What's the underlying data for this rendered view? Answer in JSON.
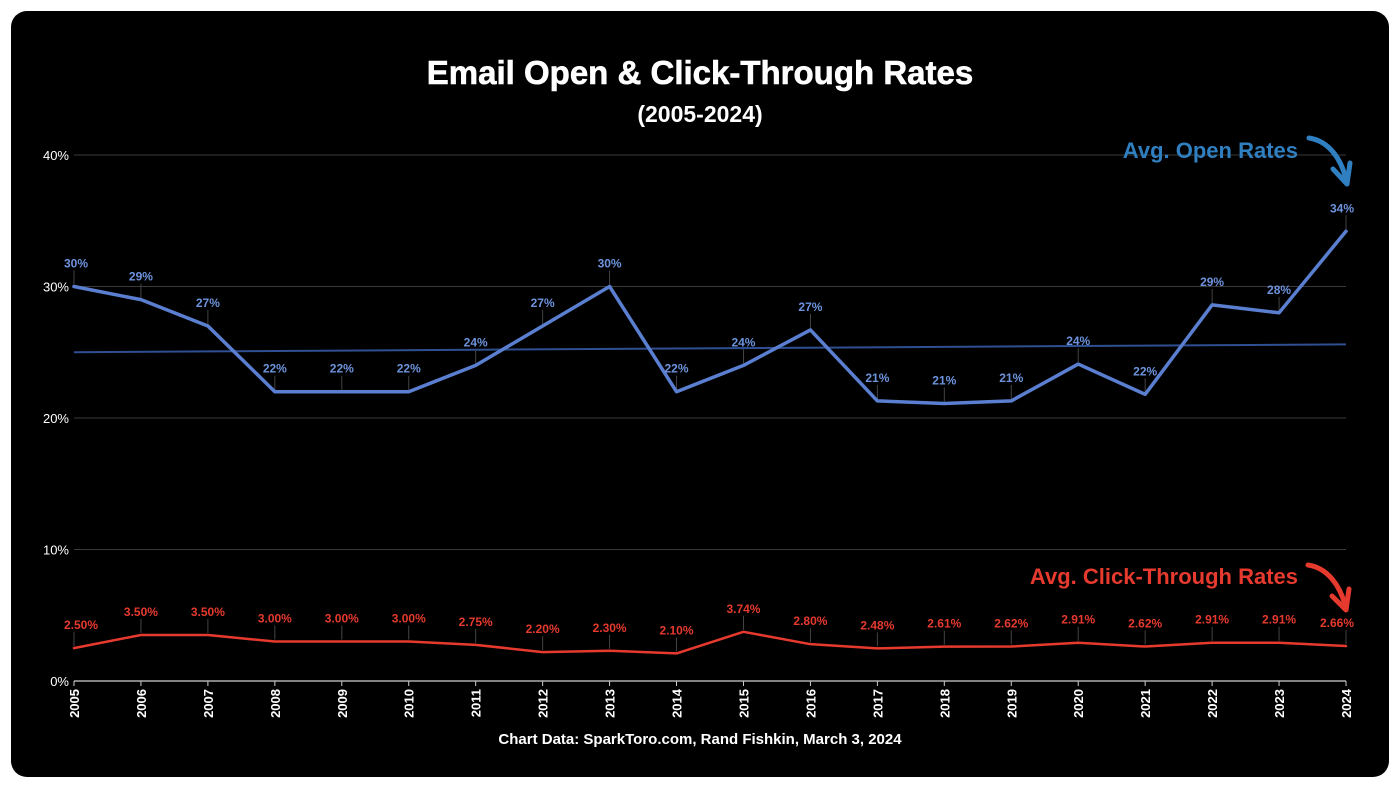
{
  "chart_data": {
    "type": "line",
    "title": "Email Open & Click-Through Rates",
    "subtitle": "(2005-2024)",
    "footnote": "Chart Data: SparkToro.com, Rand Fishkin, March 3, 2024",
    "x": [
      "2005",
      "2006",
      "2007",
      "2008",
      "2009",
      "2010",
      "2011",
      "2012",
      "2013",
      "2014",
      "2015",
      "2016",
      "2017",
      "2018",
      "2019",
      "2020",
      "2021",
      "2022",
      "2023",
      "2024"
    ],
    "ylim": [
      0,
      40
    ],
    "yticks": [
      0,
      10,
      20,
      30,
      40
    ],
    "ytick_labels": [
      "0%",
      "10%",
      "20%",
      "30%",
      "40%"
    ],
    "grid": true,
    "series": [
      {
        "name": "Avg. Open Rates",
        "color": "#5b7fd0",
        "label_color": "#2f7fc1",
        "values": [
          30,
          29,
          27,
          22,
          22,
          22,
          24,
          27,
          30,
          22,
          24,
          26.7,
          21.3,
          21.1,
          21.3,
          24.1,
          21.8,
          28.6,
          28,
          34.2
        ],
        "labels": [
          "30%",
          "29%",
          "27%",
          "22%",
          "22%",
          "22%",
          "24%",
          "27%",
          "30%",
          "22%",
          "24%",
          "27%",
          "21%",
          "21%",
          "21%",
          "24%",
          "22%",
          "29%",
          "28%",
          "34%"
        ],
        "trendline": [
          25,
          25.6
        ]
      },
      {
        "name": "Avg. Click-Through Rates",
        "color": "#e63a2e",
        "label_color": "#e63a2e",
        "values": [
          2.5,
          3.5,
          3.5,
          3.0,
          3.0,
          3.0,
          2.75,
          2.2,
          2.3,
          2.1,
          3.74,
          2.8,
          2.48,
          2.61,
          2.62,
          2.91,
          2.62,
          2.91,
          2.91,
          2.66
        ],
        "labels": [
          "2.50%",
          "3.50%",
          "3.50%",
          "3.00%",
          "3.00%",
          "3.00%",
          "2.75%",
          "2.20%",
          "2.30%",
          "2.10%",
          "3.74%",
          "2.80%",
          "2.48%",
          "2.61%",
          "2.62%",
          "2.91%",
          "2.62%",
          "2.91%",
          "2.91%",
          "2.66%"
        ]
      }
    ]
  }
}
